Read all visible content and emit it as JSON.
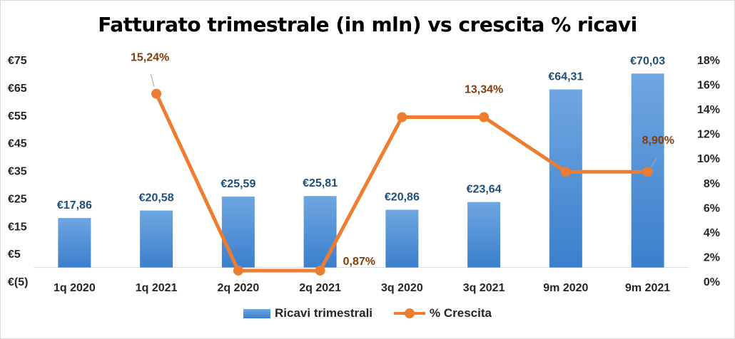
{
  "chart_data": {
    "type": "bar+line",
    "title": "Fatturato trimestrale (in mln) vs crescita % ricavi",
    "categories": [
      "1q 2020",
      "1q 2021",
      "2q 2020",
      "2q 2021",
      "3q 2020",
      "3q 2021",
      "9m 2020",
      "9m 2021"
    ],
    "series": [
      {
        "name": "Ricavi trimestrali",
        "type": "bar",
        "axis": "left",
        "color": "#5b9bd5",
        "values": [
          17.86,
          20.58,
          25.59,
          25.81,
          20.86,
          23.64,
          64.31,
          70.03
        ],
        "labels": [
          "€17,86",
          "€20,58",
          "€25,59",
          "€25,81",
          "€20,86",
          "€23,64",
          "€64,31",
          "€70,03"
        ],
        "label_color": "#1f4e79"
      },
      {
        "name": "% Crescita",
        "type": "line",
        "axis": "right",
        "color": "#ed7d31",
        "values": [
          null,
          15.24,
          0.87,
          0.87,
          13.34,
          13.34,
          8.9,
          8.9
        ],
        "labels": [
          {
            "index": 1,
            "text": "15,24%"
          },
          {
            "index": 3,
            "text": "0,87%"
          },
          {
            "index": 5,
            "text": "13,34%"
          },
          {
            "index": 7,
            "text": "8,90%"
          }
        ],
        "label_color": "#843c0c"
      }
    ],
    "y_left": {
      "min": -5,
      "max": 75,
      "ticks": [
        -5,
        5,
        15,
        25,
        35,
        45,
        55,
        65,
        75
      ],
      "tick_labels": [
        "€(5)",
        "€5",
        "€15",
        "€25",
        "€35",
        "€45",
        "€55",
        "€65",
        "€75"
      ]
    },
    "y_right": {
      "min": 0,
      "max": 18,
      "ticks": [
        0,
        2,
        4,
        6,
        8,
        10,
        12,
        14,
        16,
        18
      ],
      "tick_labels": [
        "0%",
        "2%",
        "4%",
        "6%",
        "8%",
        "10%",
        "12%",
        "14%",
        "16%",
        "18%"
      ]
    },
    "grid": false,
    "legend": "bottom"
  }
}
